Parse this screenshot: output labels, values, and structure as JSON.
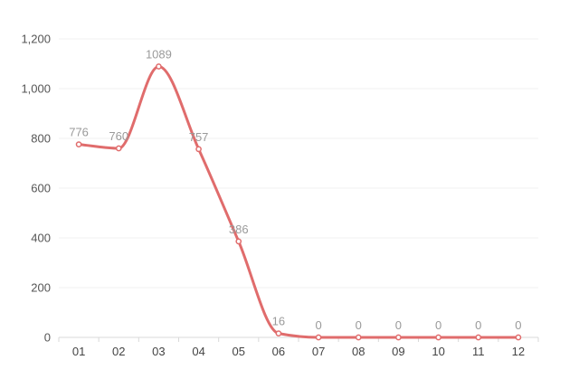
{
  "chart_data": {
    "type": "line",
    "smooth": true,
    "categories": [
      "01",
      "02",
      "03",
      "04",
      "05",
      "06",
      "07",
      "08",
      "09",
      "10",
      "11",
      "12"
    ],
    "series": [
      {
        "values": [
          776,
          760,
          1089,
          757,
          386,
          16,
          0,
          0,
          0,
          0,
          0,
          0
        ],
        "color": "#e06c6c"
      }
    ],
    "ylim": [
      0,
      1200
    ],
    "yticks": [
      0,
      200,
      400,
      600,
      800,
      1000,
      1200
    ],
    "ytick_labels": [
      "0",
      "200",
      "400",
      "600",
      "800",
      "1,000",
      "1,200"
    ],
    "grid": true,
    "data_labels": true,
    "title": "",
    "xlabel": "",
    "ylabel": ""
  }
}
